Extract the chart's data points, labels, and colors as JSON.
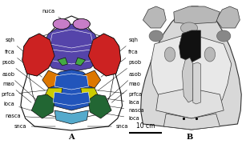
{
  "background_color": "#ffffff",
  "fig_width": 3.07,
  "fig_height": 1.8,
  "dpi": 100,
  "label_A": "A",
  "label_B": "B",
  "scale_bar_text": "10 cm",
  "colors": {
    "nuca": "#c87dc8",
    "sqh": "#cc2222",
    "frca": "#dd7700",
    "psob": "#cccc00",
    "asob": "#226633",
    "blue_purple": "#5544aa",
    "blue_main": "#2255bb",
    "blue_light": "#55aacc",
    "white_skull": "#f0f0f0",
    "outline": "#111111",
    "green_small": "#44aa44"
  }
}
